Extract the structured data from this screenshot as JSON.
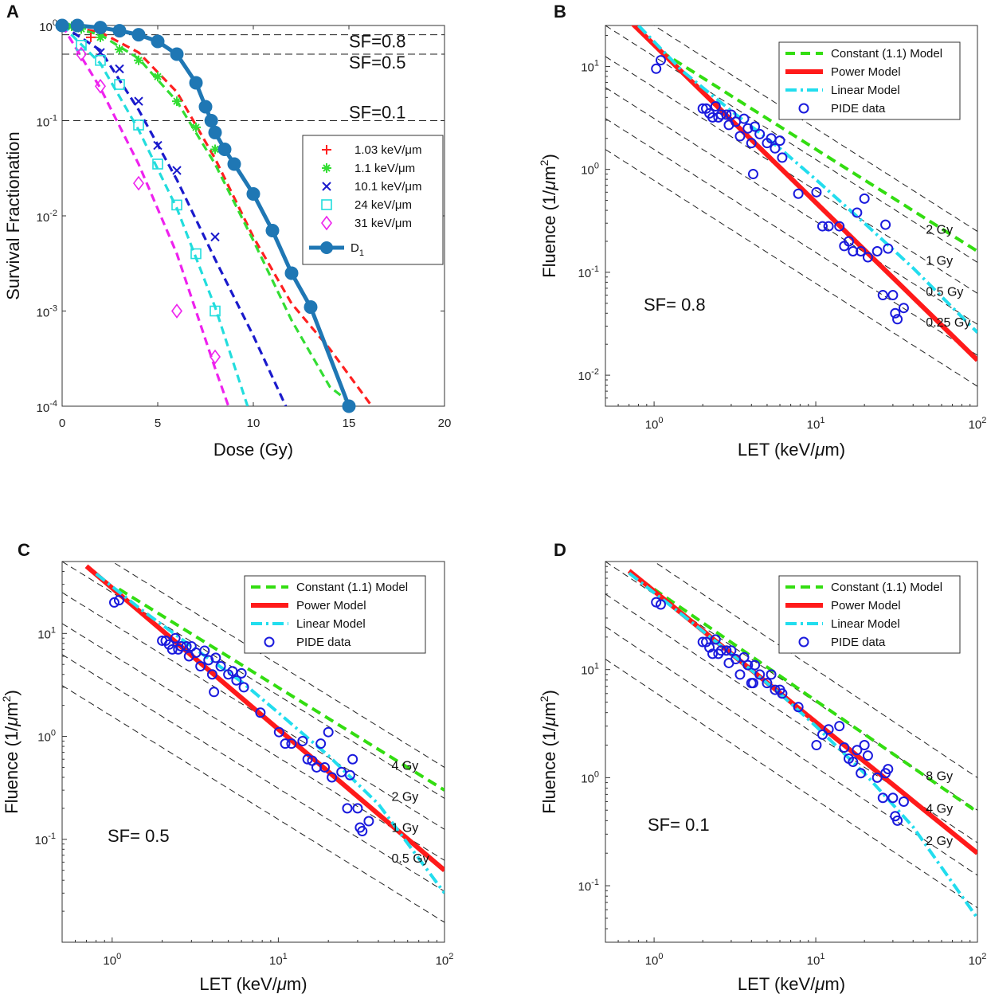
{
  "chart_data": [
    {
      "id": "A",
      "type": "line",
      "panel_label": "A",
      "xlabel": "Dose (Gy)",
      "ylabel": "Survival Fractionation",
      "xscale": "linear",
      "yscale": "log",
      "xlim": [
        0,
        20
      ],
      "ylim": [
        0.0001,
        1
      ],
      "xticks": [
        0,
        5,
        10,
        15,
        20
      ],
      "xtick_labels": [
        "0",
        "5",
        "10",
        "15",
        "20"
      ],
      "ytick_labels": [
        {
          "base": "10",
          "exp": "-4"
        },
        {
          "base": "10",
          "exp": "-3"
        },
        {
          "base": "10",
          "exp": "-2"
        },
        {
          "base": "10",
          "exp": "-1"
        },
        {
          "base": "10",
          "exp": "0"
        }
      ],
      "hlines": [
        {
          "y": 0.8,
          "label": "SF=0.8"
        },
        {
          "y": 0.5,
          "label": "SF=0.5"
        },
        {
          "y": 0.1,
          "label": "SF=0.1"
        }
      ],
      "legend_position": "right",
      "series": [
        {
          "name": "1.03 keV/μm",
          "color": "#ff2020",
          "marker": "plus",
          "points_x": [
            1.5
          ],
          "points_y": [
            0.75
          ],
          "fit_x": [
            0,
            2,
            4,
            6,
            8,
            10,
            12,
            14,
            16.2
          ],
          "fit_y": [
            1,
            0.85,
            0.52,
            0.2,
            0.04,
            0.006,
            0.0012,
            0.0004,
            0.0001
          ]
        },
        {
          "name": "1.1 keV/μm",
          "color": "#33dd33",
          "marker": "asterisk",
          "points_x": [
            0.5,
            1.0,
            2.0,
            3.0,
            4.0,
            5.0,
            6.0,
            7.0,
            8.0
          ],
          "points_y": [
            0.98,
            0.92,
            0.75,
            0.56,
            0.43,
            0.29,
            0.16,
            0.085,
            0.05
          ],
          "fit_x": [
            0,
            2,
            4,
            6,
            8,
            10,
            12,
            14,
            15.3
          ],
          "fit_y": [
            1,
            0.8,
            0.45,
            0.16,
            0.035,
            0.0055,
            0.0008,
            0.00016,
            0.0001
          ]
        },
        {
          "name": "10.1 keV/μm",
          "color": "#1a1acc",
          "marker": "x",
          "points_x": [
            2.0,
            3.0,
            4.0,
            5.0,
            6.0,
            8.0
          ],
          "points_y": [
            0.52,
            0.35,
            0.16,
            0.055,
            0.03,
            0.006
          ],
          "fit_x": [
            0,
            2,
            4,
            6,
            8,
            10,
            11.7
          ],
          "fit_y": [
            1,
            0.55,
            0.13,
            0.024,
            0.0035,
            0.00055,
            0.0001
          ]
        },
        {
          "name": "24 keV/μm",
          "color": "#22dddd",
          "marker": "square",
          "points_x": [
            1.0,
            2.0,
            3.0,
            4.0,
            5.0,
            6.0,
            7.0,
            8.0
          ],
          "points_y": [
            0.62,
            0.43,
            0.24,
            0.09,
            0.035,
            0.013,
            0.004,
            0.001
          ],
          "fit_x": [
            0,
            2,
            4,
            6,
            8,
            9.7
          ],
          "fit_y": [
            1,
            0.4,
            0.08,
            0.012,
            0.0011,
            0.0001
          ]
        },
        {
          "name": "31 keV/μm",
          "color": "#ee22ee",
          "marker": "diamond",
          "points_x": [
            1.0,
            2.0,
            4.0,
            6.0,
            8.0
          ],
          "points_y": [
            0.5,
            0.23,
            0.022,
            0.001,
            0.00033
          ],
          "fit_x": [
            0,
            2,
            4,
            6,
            8,
            8.7
          ],
          "fit_y": [
            1,
            0.22,
            0.035,
            0.004,
            0.00025,
            0.0001
          ]
        },
        {
          "name": "D1",
          "color": "#1f77b4",
          "marker": "circle",
          "points_x": [
            0,
            0.8,
            2,
            3,
            4,
            5,
            6,
            7,
            7.5,
            7.8,
            8.0,
            8.5,
            9,
            10,
            11,
            12,
            13,
            15
          ],
          "points_y": [
            1.0,
            1.0,
            0.95,
            0.88,
            0.8,
            0.68,
            0.5,
            0.25,
            0.14,
            0.1,
            0.075,
            0.05,
            0.035,
            0.017,
            0.007,
            0.0025,
            0.0011,
            0.0001
          ],
          "line": "solid"
        }
      ]
    },
    {
      "id": "B",
      "type": "line",
      "panel_label": "B",
      "xlabel": "LET (keV/μm)",
      "ylabel": "Fluence (1/μm2)",
      "xscale": "log",
      "yscale": "log",
      "xlim": [
        0.5,
        100
      ],
      "ylim": [
        0.005,
        25
      ],
      "xtick_labels": [
        {
          "base": "10",
          "exp": "0"
        },
        {
          "base": "10",
          "exp": "1"
        },
        {
          "base": "10",
          "exp": "2"
        }
      ],
      "ytick_labels": [
        {
          "base": "10",
          "exp": "-2"
        },
        {
          "base": "10",
          "exp": "-1"
        },
        {
          "base": "10",
          "exp": "0"
        },
        {
          "base": "10",
          "exp": "1"
        }
      ],
      "annotation": "SF= 0.8",
      "dose_lines": [
        {
          "label": "2 Gy",
          "dose": 2
        },
        {
          "label": "1 Gy",
          "dose": 1
        },
        {
          "label": "0.5 Gy",
          "dose": 0.5
        },
        {
          "label": "0.25 Gy",
          "dose": 0.25
        }
      ],
      "legend": [
        "Constant (1.1) Model",
        "Power Model",
        "Linear Model",
        "PIDE data"
      ],
      "series": [
        {
          "name": "Constant (1.1) Model",
          "x": [
            1.1,
            100
          ],
          "y": [
            14,
            0.16
          ]
        },
        {
          "name": "Power Model",
          "x": [
            0.7,
            100
          ],
          "y": [
            28,
            0.014
          ]
        },
        {
          "name": "Linear Model",
          "x": [
            0.8,
            1.5,
            3,
            6,
            10,
            20,
            40,
            100
          ],
          "y": [
            25,
            9,
            3.7,
            1.6,
            0.8,
            0.3,
            0.11,
            0.026
          ]
        },
        {
          "name": "PIDE data",
          "x": [
            1.03,
            1.1,
            2.0,
            2.1,
            2.2,
            2.3,
            2.4,
            2.5,
            2.6,
            2.8,
            2.9,
            3.0,
            3.2,
            3.4,
            3.6,
            3.8,
            4.0,
            4.2,
            4.5,
            5.0,
            5.3,
            5.6,
            6.0,
            6.2,
            7.8,
            10.1,
            11.0,
            12.0,
            14.0,
            15.0,
            16.0,
            17.0,
            18.0,
            19.0,
            20.0,
            21.0,
            24.0,
            26.0,
            27.0,
            28.0,
            30.0,
            31.0,
            32.0,
            35.0,
            4.1
          ],
          "y": [
            9.5,
            11.5,
            3.9,
            3.9,
            3.5,
            3.2,
            4.1,
            3.2,
            3.4,
            3.4,
            2.7,
            3.4,
            2.9,
            2.1,
            3.1,
            2.5,
            1.8,
            2.6,
            2.2,
            1.8,
            2.0,
            1.6,
            1.9,
            1.3,
            0.58,
            0.6,
            0.28,
            0.28,
            0.28,
            0.18,
            0.2,
            0.16,
            0.38,
            0.16,
            0.52,
            0.14,
            0.16,
            0.06,
            0.29,
            0.17,
            0.06,
            0.04,
            0.035,
            0.045,
            0.9
          ]
        }
      ]
    },
    {
      "id": "C",
      "type": "line",
      "panel_label": "C",
      "xlabel": "LET (keV/μm)",
      "ylabel": "Fluence (1/μm2)",
      "xscale": "log",
      "yscale": "log",
      "xlim": [
        0.5,
        100
      ],
      "ylim": [
        0.01,
        50
      ],
      "xtick_labels": [
        {
          "base": "10",
          "exp": "0"
        },
        {
          "base": "10",
          "exp": "1"
        },
        {
          "base": "10",
          "exp": "2"
        }
      ],
      "ytick_labels": [
        {
          "base": "10",
          "exp": "-1"
        },
        {
          "base": "10",
          "exp": "0"
        },
        {
          "base": "10",
          "exp": "1"
        }
      ],
      "annotation": "SF= 0.5",
      "dose_lines": [
        {
          "label": "4 Gy",
          "dose": 4
        },
        {
          "label": "2 Gy",
          "dose": 2
        },
        {
          "label": "1 Gy",
          "dose": 1
        },
        {
          "label": "0.5 Gy",
          "dose": 0.5
        }
      ],
      "legend": [
        "Constant (1.1) Model",
        "Power Model",
        "Linear Model",
        "PIDE data"
      ],
      "series": [
        {
          "name": "Constant (1.1) Model",
          "x": [
            1.1,
            100
          ],
          "y": [
            27,
            0.3
          ]
        },
        {
          "name": "Power Model",
          "x": [
            0.7,
            100
          ],
          "y": [
            45,
            0.05
          ]
        },
        {
          "name": "Linear Model",
          "x": [
            0.8,
            1.5,
            3,
            6,
            10,
            20,
            40,
            100
          ],
          "y": [
            38,
            17,
            7.5,
            3.4,
            1.7,
            0.65,
            0.22,
            0.03
          ]
        },
        {
          "name": "PIDE data",
          "x": [
            1.03,
            1.1,
            2.0,
            2.1,
            2.2,
            2.3,
            2.4,
            2.5,
            2.6,
            2.8,
            2.9,
            3.0,
            3.2,
            3.4,
            3.6,
            3.8,
            4.0,
            4.2,
            4.5,
            5.0,
            5.3,
            5.6,
            6.0,
            6.2,
            7.8,
            10.1,
            11.0,
            12.0,
            14.0,
            15.0,
            16.0,
            17.0,
            18.0,
            19.0,
            20.0,
            21.0,
            24.0,
            26.0,
            27.0,
            28.0,
            30.0,
            31.0,
            32.0,
            35.0,
            4.1
          ],
          "y": [
            20,
            21,
            8.5,
            8.5,
            7.8,
            7.0,
            9.0,
            7.0,
            7.5,
            7.5,
            6.0,
            7.5,
            6.5,
            4.8,
            6.8,
            5.5,
            4.0,
            5.8,
            4.8,
            4.0,
            4.3,
            3.5,
            4.1,
            3.0,
            1.7,
            1.1,
            0.85,
            0.85,
            0.9,
            0.6,
            0.58,
            0.5,
            0.85,
            0.5,
            1.1,
            0.4,
            0.45,
            0.2,
            0.42,
            0.6,
            0.2,
            0.13,
            0.12,
            0.15,
            2.7
          ]
        }
      ]
    },
    {
      "id": "D",
      "type": "line",
      "panel_label": "D",
      "xlabel": "LET (keV/μm)",
      "ylabel": "Fluence (1/μm2)",
      "xscale": "log",
      "yscale": "log",
      "xlim": [
        0.5,
        100
      ],
      "ylim": [
        0.03,
        100
      ],
      "xtick_labels": [
        {
          "base": "10",
          "exp": "0"
        },
        {
          "base": "10",
          "exp": "1"
        },
        {
          "base": "10",
          "exp": "2"
        }
      ],
      "ytick_labels": [
        {
          "base": "10",
          "exp": "-1"
        },
        {
          "base": "10",
          "exp": "0"
        },
        {
          "base": "10",
          "exp": "1"
        }
      ],
      "annotation": "SF= 0.1",
      "dose_lines": [
        {
          "label": "8 Gy",
          "dose": 8
        },
        {
          "label": "4 Gy",
          "dose": 4
        },
        {
          "label": "2 Gy",
          "dose": 2
        }
      ],
      "legend": [
        "Constant (1.1) Model",
        "Power Model",
        "Linear Model",
        "PIDE data"
      ],
      "series": [
        {
          "name": "Constant (1.1) Model",
          "x": [
            0.7,
            100
          ],
          "y": [
            80,
            0.48
          ]
        },
        {
          "name": "Power Model",
          "x": [
            0.7,
            100
          ],
          "y": [
            82,
            0.2
          ]
        },
        {
          "name": "Linear Model",
          "x": [
            0.7,
            1.5,
            3,
            6,
            10,
            20,
            40,
            100
          ],
          "y": [
            78,
            32,
            14,
            6.0,
            3.0,
            1.1,
            0.35,
            0.05
          ]
        },
        {
          "name": "PIDE data",
          "x": [
            1.03,
            1.1,
            2.0,
            2.1,
            2.2,
            2.3,
            2.4,
            2.5,
            2.6,
            2.8,
            2.9,
            3.0,
            3.2,
            3.4,
            3.6,
            3.8,
            4.0,
            4.2,
            4.5,
            5.0,
            5.3,
            5.6,
            6.0,
            6.2,
            7.8,
            10.1,
            11.0,
            12.0,
            14.0,
            15.0,
            16.0,
            17.0,
            18.0,
            19.0,
            20.0,
            21.0,
            24.0,
            26.0,
            27.0,
            28.0,
            30.0,
            31.0,
            32.0,
            35.0,
            4.1
          ],
          "y": [
            42,
            40,
            18,
            18,
            16,
            14,
            19,
            14,
            15,
            15,
            11.5,
            15,
            12.5,
            9.0,
            13,
            11,
            7.5,
            11,
            9.0,
            7.5,
            9.0,
            6.5,
            6.5,
            6.0,
            4.5,
            2.0,
            2.5,
            2.8,
            3.0,
            1.9,
            1.5,
            1.4,
            1.8,
            1.1,
            2.0,
            1.6,
            1.0,
            0.65,
            1.1,
            1.2,
            0.65,
            0.44,
            0.4,
            0.6,
            7.5
          ]
        }
      ]
    }
  ]
}
